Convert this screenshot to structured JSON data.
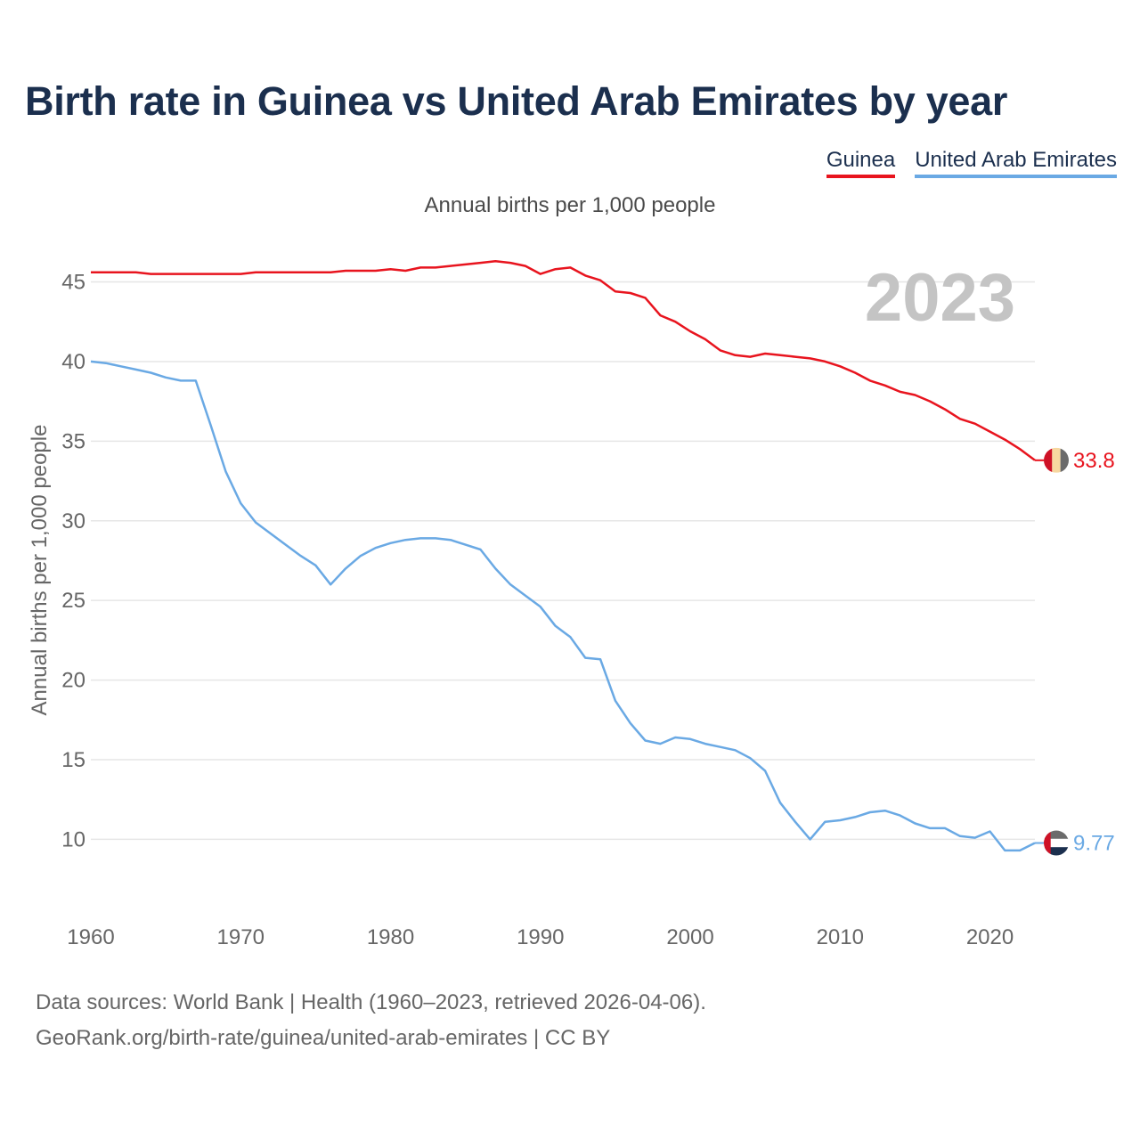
{
  "title": "Birth rate in Guinea vs United Arab Emirates by year",
  "subtitle": "Annual births per 1,000 people",
  "legend": {
    "guinea": "Guinea",
    "uae": "United Arab Emirates"
  },
  "year_watermark": "2023",
  "footer": {
    "line1": "Data sources: World Bank | Health (1960–2023, retrieved 2026-04-06).",
    "line2": "GeoRank.org/birth-rate/guinea/united-arab-emirates | CC BY"
  },
  "colors": {
    "guinea": "#e8141e",
    "uae": "#6aa9e4",
    "grid": "#e6e6e6",
    "axis_text": "#666666"
  },
  "chart_data": {
    "type": "line",
    "title": "Birth rate in Guinea vs United Arab Emirates by year",
    "ylabel": "Annual births per 1,000 people",
    "xlabel": "",
    "xlim": [
      1960,
      2023
    ],
    "ylim": [
      6.5,
      49
    ],
    "x_ticks": [
      1960,
      1970,
      1980,
      1990,
      2000,
      2010,
      2020
    ],
    "y_ticks": [
      10,
      15,
      20,
      25,
      30,
      35,
      40,
      45
    ],
    "grid": true,
    "legend_position": "top-right",
    "x": [
      1960,
      1961,
      1962,
      1963,
      1964,
      1965,
      1966,
      1967,
      1968,
      1969,
      1970,
      1971,
      1972,
      1973,
      1974,
      1975,
      1976,
      1977,
      1978,
      1979,
      1980,
      1981,
      1982,
      1983,
      1984,
      1985,
      1986,
      1987,
      1988,
      1989,
      1990,
      1991,
      1992,
      1993,
      1994,
      1995,
      1996,
      1997,
      1998,
      1999,
      2000,
      2001,
      2002,
      2003,
      2004,
      2005,
      2006,
      2007,
      2008,
      2009,
      2010,
      2011,
      2012,
      2013,
      2014,
      2015,
      2016,
      2017,
      2018,
      2019,
      2020,
      2021,
      2022,
      2023
    ],
    "series": [
      {
        "name": "Guinea",
        "color": "#e8141e",
        "end_label": "33.8",
        "values": [
          45.6,
          45.6,
          45.6,
          45.6,
          45.5,
          45.5,
          45.5,
          45.5,
          45.5,
          45.5,
          45.5,
          45.6,
          45.6,
          45.6,
          45.6,
          45.6,
          45.6,
          45.7,
          45.7,
          45.7,
          45.8,
          45.7,
          45.9,
          45.9,
          46.0,
          46.1,
          46.2,
          46.3,
          46.2,
          46.0,
          45.5,
          45.8,
          45.9,
          45.4,
          45.1,
          44.4,
          44.3,
          44.0,
          42.9,
          42.5,
          41.9,
          41.4,
          40.7,
          40.4,
          40.3,
          40.5,
          40.4,
          40.3,
          40.2,
          40.0,
          39.7,
          39.3,
          38.8,
          38.5,
          38.1,
          37.9,
          37.5,
          37.0,
          36.4,
          36.1,
          35.6,
          35.1,
          34.5,
          33.8
        ]
      },
      {
        "name": "United Arab Emirates",
        "color": "#6aa9e4",
        "end_label": "9.77",
        "values": [
          40.0,
          39.9,
          39.7,
          39.5,
          39.3,
          39.0,
          38.8,
          38.8,
          36.0,
          33.1,
          31.1,
          29.9,
          29.2,
          28.5,
          27.8,
          27.2,
          26.0,
          27.0,
          27.8,
          28.3,
          28.6,
          28.8,
          28.9,
          28.9,
          28.8,
          28.5,
          28.2,
          27.0,
          26.0,
          25.3,
          24.6,
          23.4,
          22.7,
          21.4,
          21.3,
          18.7,
          17.3,
          16.2,
          16.0,
          16.4,
          16.3,
          16.0,
          15.8,
          15.6,
          15.1,
          14.3,
          12.3,
          11.1,
          10.0,
          11.1,
          11.2,
          11.4,
          11.7,
          11.8,
          11.5,
          11.0,
          10.7,
          10.7,
          10.2,
          10.1,
          10.5,
          9.3,
          9.3,
          9.77
        ]
      }
    ]
  }
}
